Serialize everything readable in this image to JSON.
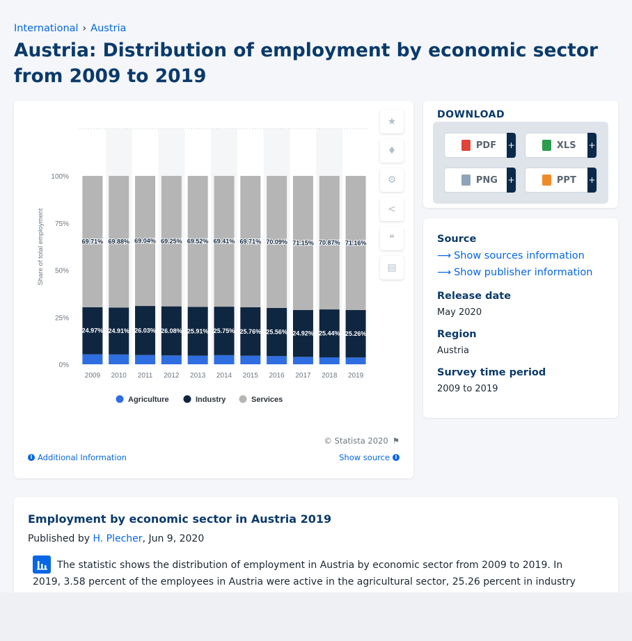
{
  "breadcrumb": {
    "items": [
      "International",
      "Austria"
    ],
    "separator": "›"
  },
  "title": "Austria: Distribution of employment by economic sector from 2009 to 2019",
  "chart_data": {
    "type": "bar",
    "stacked": true,
    "categories": [
      "2009",
      "2010",
      "2011",
      "2012",
      "2013",
      "2014",
      "2015",
      "2016",
      "2017",
      "2018",
      "2019"
    ],
    "series": [
      {
        "name": "Agriculture",
        "color": "#2f6ee0",
        "values": [
          5.32,
          5.21,
          4.94,
          4.68,
          4.58,
          4.84,
          4.53,
          4.35,
          3.93,
          3.69,
          3.58
        ],
        "labels": [
          "5.32%",
          "5.21%",
          "4.94%",
          "4.68%",
          "4.58%",
          "4.84%",
          "4.53%",
          "4.35%",
          "3.93%",
          "3.69%",
          "3.58%"
        ]
      },
      {
        "name": "Industry",
        "color": "#0f2640",
        "values": [
          24.97,
          24.91,
          26.03,
          26.08,
          25.91,
          25.75,
          25.76,
          25.56,
          24.92,
          25.44,
          25.26
        ],
        "labels": [
          "24.97%",
          "24.91%",
          "26.03%",
          "26.08%",
          "25.91%",
          "25.75%",
          "25.76%",
          "25.56%",
          "24.92%",
          "25.44%",
          "25.26%"
        ]
      },
      {
        "name": "Services",
        "color": "#b5b5b5",
        "values": [
          69.71,
          69.88,
          69.04,
          69.25,
          69.52,
          69.41,
          69.71,
          70.09,
          71.15,
          70.87,
          71.16
        ],
        "labels": [
          "69.71%",
          "69.88%",
          "69.04%",
          "69.25%",
          "69.52%",
          "69.41%",
          "69.71%",
          "70.09%",
          "71.15%",
          "70.87%",
          "71.16%"
        ]
      }
    ],
    "ylabel": "Share of total employment",
    "yticks": [
      "0%",
      "25%",
      "50%",
      "75%",
      "100%"
    ],
    "ylim": [
      0,
      100
    ],
    "legend": "bottom"
  },
  "chart_footer": {
    "copyright": "© Statista 2020",
    "additional_info": "Additional Information",
    "show_source": "Show source"
  },
  "tools": [
    "star-icon",
    "bell-icon",
    "gear-icon",
    "share-icon",
    "quote-icon",
    "print-icon"
  ],
  "download": {
    "title": "DOWNLOAD",
    "formats": [
      {
        "label": "PDF",
        "color": "#e0433a"
      },
      {
        "label": "XLS",
        "color": "#2a9d4e"
      },
      {
        "label": "PNG",
        "color": "#8fa4b8"
      },
      {
        "label": "PPT",
        "color": "#f08b2a"
      }
    ],
    "plus": "+"
  },
  "meta": {
    "source_h": "Source",
    "sources_link": "Show sources information",
    "publisher_link": "Show publisher information",
    "release_h": "Release date",
    "release_v": "May 2020",
    "region_h": "Region",
    "region_v": "Austria",
    "survey_h": "Survey time period",
    "survey_v": "2009 to 2019"
  },
  "description": {
    "title": "Employment by economic sector in Austria 2019",
    "published_prefix": "Published by",
    "author": "H. Plecher",
    "date": ", Jun 9, 2020",
    "text": "The statistic shows the distribution of employment in Austria by economic sector from 2009 to 2019. In 2019, 3.58 percent of the employees in Austria were active in the agricultural sector, 25.26 percent in industry"
  }
}
